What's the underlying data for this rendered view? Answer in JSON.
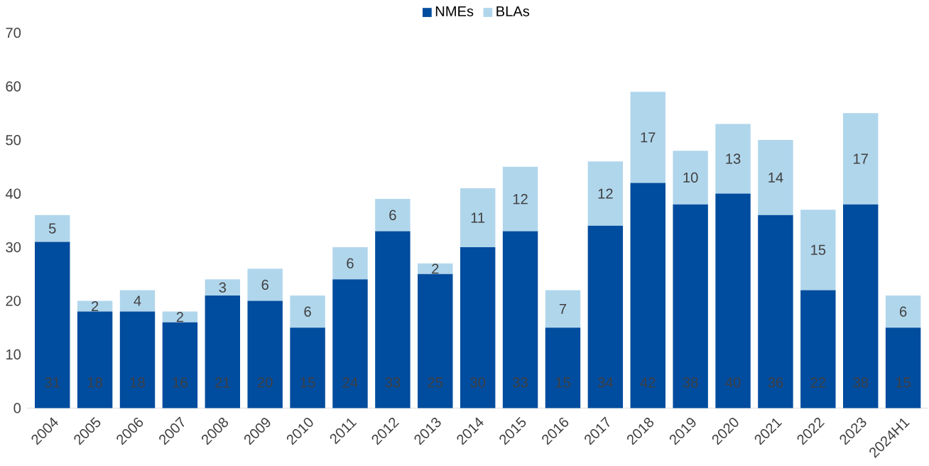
{
  "chart_data": {
    "type": "bar",
    "stacked": true,
    "data_labels": true,
    "legend": "top",
    "grid": false,
    "categories": [
      "2004",
      "2005",
      "2006",
      "2007",
      "2008",
      "2009",
      "2010",
      "2011",
      "2012",
      "2013",
      "2014",
      "2015",
      "2016",
      "2017",
      "2018",
      "2019",
      "2020",
      "2021",
      "2022",
      "2023",
      "2024H1"
    ],
    "series": [
      {
        "name": "NMEs",
        "color": "#004c9e",
        "values": [
          31,
          18,
          18,
          16,
          21,
          20,
          15,
          24,
          33,
          25,
          30,
          33,
          15,
          34,
          42,
          38,
          40,
          36,
          22,
          38,
          15
        ]
      },
      {
        "name": "BLAs",
        "color": "#b0d6ec",
        "values": [
          5,
          2,
          4,
          2,
          3,
          6,
          6,
          6,
          6,
          2,
          11,
          12,
          7,
          12,
          17,
          10,
          13,
          14,
          15,
          17,
          6
        ]
      }
    ],
    "ylim": [
      0,
      70
    ],
    "yticks": [
      0,
      10,
      20,
      30,
      40,
      50,
      60,
      70
    ]
  }
}
